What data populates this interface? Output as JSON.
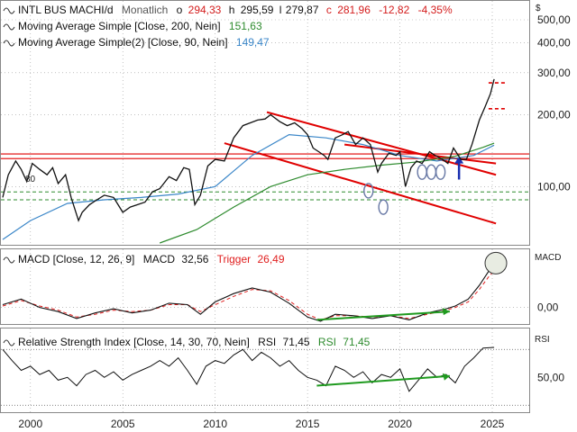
{
  "chart_data": {
    "type": "line",
    "colors": {
      "price": "#111111",
      "ma200": "#2e8b2e",
      "ma90": "#3a86c8",
      "macd": "#111111",
      "trigger": "#e02020",
      "rsi": "#111111",
      "rsi_signal": "#2e8b2e",
      "trend": "#e00000",
      "annot_green": "#1f9a1f",
      "annot_blue": "#1a2fb0",
      "support": "#2e8b2e",
      "grid": "#9a9a9a"
    },
    "main": {
      "symbol": "INTL BUS MACHI/d",
      "interval": "Monatlich",
      "ohlc": {
        "o_label": "o",
        "o": "294,33",
        "h_label": "h",
        "h": "295,59",
        "l_label": "l",
        "l": "279,87",
        "c_label": "c",
        "c": "281,96",
        "change": "-12,82",
        "change_pct": "-4,35%"
      },
      "currency_label": "$",
      "y_scale": "log",
      "ylim": [
        57,
        600
      ],
      "y_ticks": [
        {
          "value": 500,
          "label": "500,00"
        },
        {
          "value": 400,
          "label": "400,00"
        },
        {
          "value": 300,
          "label": "300,00"
        },
        {
          "value": 200,
          "label": "200,00"
        },
        {
          "value": 100,
          "label": "100,00"
        }
      ],
      "series": [
        {
          "name": "price",
          "x": [
            1998.5,
            1998.8,
            1999.2,
            1999.5,
            1999.8,
            2000.1,
            2000.5,
            2000.9,
            2001.2,
            2001.5,
            2001.9,
            2002.2,
            2002.6,
            2002.8,
            2003.2,
            2003.6,
            2004.0,
            2004.5,
            2005.0,
            2005.4,
            2005.8,
            2006.2,
            2006.6,
            2007.0,
            2007.5,
            2007.9,
            2008.3,
            2008.6,
            2008.9,
            2009.2,
            2009.6,
            2010.0,
            2010.5,
            2011.0,
            2011.5,
            2011.9,
            2012.3,
            2012.7,
            2013.0,
            2013.5,
            2013.9,
            2014.3,
            2014.7,
            2015.0,
            2015.3,
            2015.6,
            2015.9,
            2016.1,
            2016.5,
            2016.9,
            2017.2,
            2017.6,
            2018.0,
            2018.4,
            2018.8,
            2019.0,
            2019.4,
            2019.8,
            2020.0,
            2020.3,
            2020.6,
            2020.9,
            2021.2,
            2021.6,
            2021.9,
            2022.3,
            2022.6,
            2022.9,
            2023.3,
            2023.6,
            2023.9,
            2024.3,
            2024.6,
            2024.9,
            2025.1
          ],
          "values": [
            90,
            112,
            128,
            118,
            105,
            125,
            118,
            112,
            120,
            103,
            112,
            90,
            72,
            78,
            84,
            88,
            92,
            90,
            78,
            82,
            84,
            86,
            95,
            98,
            110,
            106,
            120,
            118,
            84,
            92,
            122,
            130,
            128,
            160,
            180,
            185,
            190,
            192,
            200,
            187,
            180,
            185,
            175,
            165,
            145,
            140,
            135,
            130,
            160,
            165,
            170,
            150,
            160,
            150,
            115,
            125,
            138,
            135,
            140,
            100,
            120,
            128,
            125,
            140,
            135,
            130,
            125,
            145,
            130,
            130,
            150,
            190,
            215,
            245,
            282
          ]
        },
        {
          "name": "Moving Average Simple [Close, 200, Nein]",
          "value": "151,63",
          "x": [
            2007.0,
            2009.0,
            2011.0,
            2013.0,
            2015.0,
            2017.0,
            2019.0,
            2021.0,
            2023.0,
            2024.5,
            2025.1
          ],
          "values": [
            58,
            66,
            82,
            100,
            112,
            118,
            123,
            127,
            134,
            146,
            152
          ]
        },
        {
          "name": "Moving Average Simple(2) [Close, 90, Nein]",
          "value": "149,47",
          "x": [
            1998.5,
            2000.0,
            2002.0,
            2004.0,
            2006.0,
            2008.0,
            2010.0,
            2012.0,
            2014.0,
            2016.0,
            2018.0,
            2020.0,
            2022.0,
            2024.0,
            2025.1
          ],
          "values": [
            60,
            72,
            85,
            88,
            90,
            93,
            100,
            135,
            165,
            160,
            150,
            135,
            128,
            135,
            149
          ]
        }
      ],
      "annotations": {
        "horizontal_resistance": [
          131,
          137
        ],
        "dashed_support": [
          95,
          88
        ],
        "support_label": "80",
        "trend_channel_upper": {
          "x": [
            2012.8,
            2025.2
          ],
          "values": [
            205,
            112
          ]
        },
        "trend_channel_lower": {
          "x": [
            2010.5,
            2025.2
          ],
          "values": [
            152,
            70
          ]
        },
        "extra_trend_line": {
          "x": [
            2017.0,
            2025.2
          ],
          "values": [
            150,
            125
          ]
        },
        "low_marks_x": [
          2018.3,
          2019.1,
          2021.2,
          2021.7,
          2022.2
        ],
        "breakout_arrow_x": 2023.2,
        "target_dashes": [
          272,
          212
        ]
      }
    },
    "macd": {
      "label": "MACD [Close, 12, 26, 9]",
      "macd_label": "MACD",
      "macd_value": "32,56",
      "trigger_label": "Trigger",
      "trigger_value": "26,49",
      "axis_title": "MACD",
      "ylim": [
        -12,
        42
      ],
      "y_ticks": [
        {
          "value": 0,
          "label": "0,00"
        }
      ],
      "series": [
        {
          "name": "MACD",
          "x": [
            1998.5,
            1999.5,
            2000.5,
            2001.5,
            2002.5,
            2003.5,
            2004.5,
            2005.5,
            2006.5,
            2007.5,
            2008.5,
            2009.2,
            2010.0,
            2011.0,
            2012.0,
            2013.0,
            2014.0,
            2015.0,
            2015.7,
            2016.5,
            2017.5,
            2018.5,
            2019.5,
            2020.5,
            2021.5,
            2022.5,
            2023.0,
            2023.7,
            2024.3,
            2024.8,
            2025.1
          ],
          "values": [
            2,
            6,
            0,
            -3,
            -8,
            -4,
            -1,
            -4,
            -2,
            3,
            2,
            -5,
            4,
            10,
            14,
            11,
            3,
            -7,
            -10,
            -5,
            -6,
            -8,
            -6,
            -9,
            -4,
            -1,
            1,
            6,
            16,
            26,
            32.56
          ]
        },
        {
          "name": "Trigger",
          "x": [
            1998.5,
            1999.5,
            2000.5,
            2001.5,
            2002.5,
            2003.5,
            2004.5,
            2005.5,
            2006.5,
            2007.5,
            2008.5,
            2009.2,
            2010.0,
            2011.0,
            2012.0,
            2013.0,
            2014.0,
            2015.0,
            2015.7,
            2016.5,
            2017.5,
            2018.5,
            2019.5,
            2020.5,
            2021.5,
            2022.5,
            2023.0,
            2023.7,
            2024.3,
            2024.8,
            2025.1
          ],
          "values": [
            1,
            5,
            1,
            -2,
            -7,
            -5,
            -2,
            -3,
            -2,
            2,
            2,
            -3,
            2,
            8,
            13,
            12,
            5,
            -5,
            -9,
            -6,
            -6,
            -7,
            -6,
            -8,
            -5,
            -2,
            0,
            4,
            13,
            22,
            26.49
          ]
        }
      ],
      "divergence_line": {
        "x": [
          2015.5,
          2022.7
        ],
        "values": [
          -9,
          -3
        ]
      },
      "circle_x": 2025.0
    },
    "rsi": {
      "label": "Relative Strength Index [Close, 14, 30, 70, Nein]",
      "rsi_label": "RSI",
      "rsi_value": "71,45",
      "signal_label": "RSI",
      "signal_value": "71,45",
      "axis_title": "RSI",
      "ylim": [
        25,
        85
      ],
      "levels": [
        30,
        70
      ],
      "y_ticks": [
        {
          "value": 50,
          "label": "50,00"
        }
      ],
      "series": [
        {
          "name": "RSI",
          "x": [
            1998.5,
            1999.0,
            1999.5,
            2000.0,
            2000.5,
            2001.0,
            2001.5,
            2002.0,
            2002.5,
            2003.0,
            2003.5,
            2004.0,
            2004.5,
            2005.0,
            2005.5,
            2006.0,
            2006.5,
            2007.0,
            2007.5,
            2008.0,
            2008.5,
            2009.0,
            2009.5,
            2010.0,
            2010.5,
            2011.0,
            2011.5,
            2012.0,
            2012.5,
            2013.0,
            2013.5,
            2014.0,
            2014.5,
            2015.0,
            2015.5,
            2016.0,
            2016.5,
            2017.0,
            2017.5,
            2018.0,
            2018.5,
            2019.0,
            2019.5,
            2020.0,
            2020.5,
            2021.0,
            2021.5,
            2022.0,
            2022.5,
            2023.0,
            2023.5,
            2024.0,
            2024.5,
            2025.1
          ],
          "values": [
            70,
            62,
            55,
            58,
            52,
            55,
            48,
            50,
            44,
            52,
            55,
            50,
            54,
            48,
            52,
            55,
            58,
            62,
            58,
            64,
            55,
            45,
            58,
            62,
            60,
            66,
            70,
            62,
            68,
            64,
            58,
            62,
            55,
            50,
            48,
            44,
            58,
            55,
            50,
            54,
            46,
            52,
            50,
            56,
            40,
            48,
            56,
            50,
            52,
            46,
            58,
            64,
            71,
            71.45
          ]
        }
      ],
      "divergence_line": {
        "x": [
          2015.5,
          2022.7
        ],
        "values": [
          44,
          51
        ]
      }
    },
    "x_axis": {
      "xlim": [
        1998.4,
        2027.0
      ],
      "ticks": [
        {
          "value": 2000,
          "label": "2000"
        },
        {
          "value": 2005,
          "label": "2005"
        },
        {
          "value": 2010,
          "label": "2010"
        },
        {
          "value": 2015,
          "label": "2015"
        },
        {
          "value": 2020,
          "label": "2020"
        },
        {
          "value": 2025,
          "label": "2025"
        }
      ]
    }
  }
}
